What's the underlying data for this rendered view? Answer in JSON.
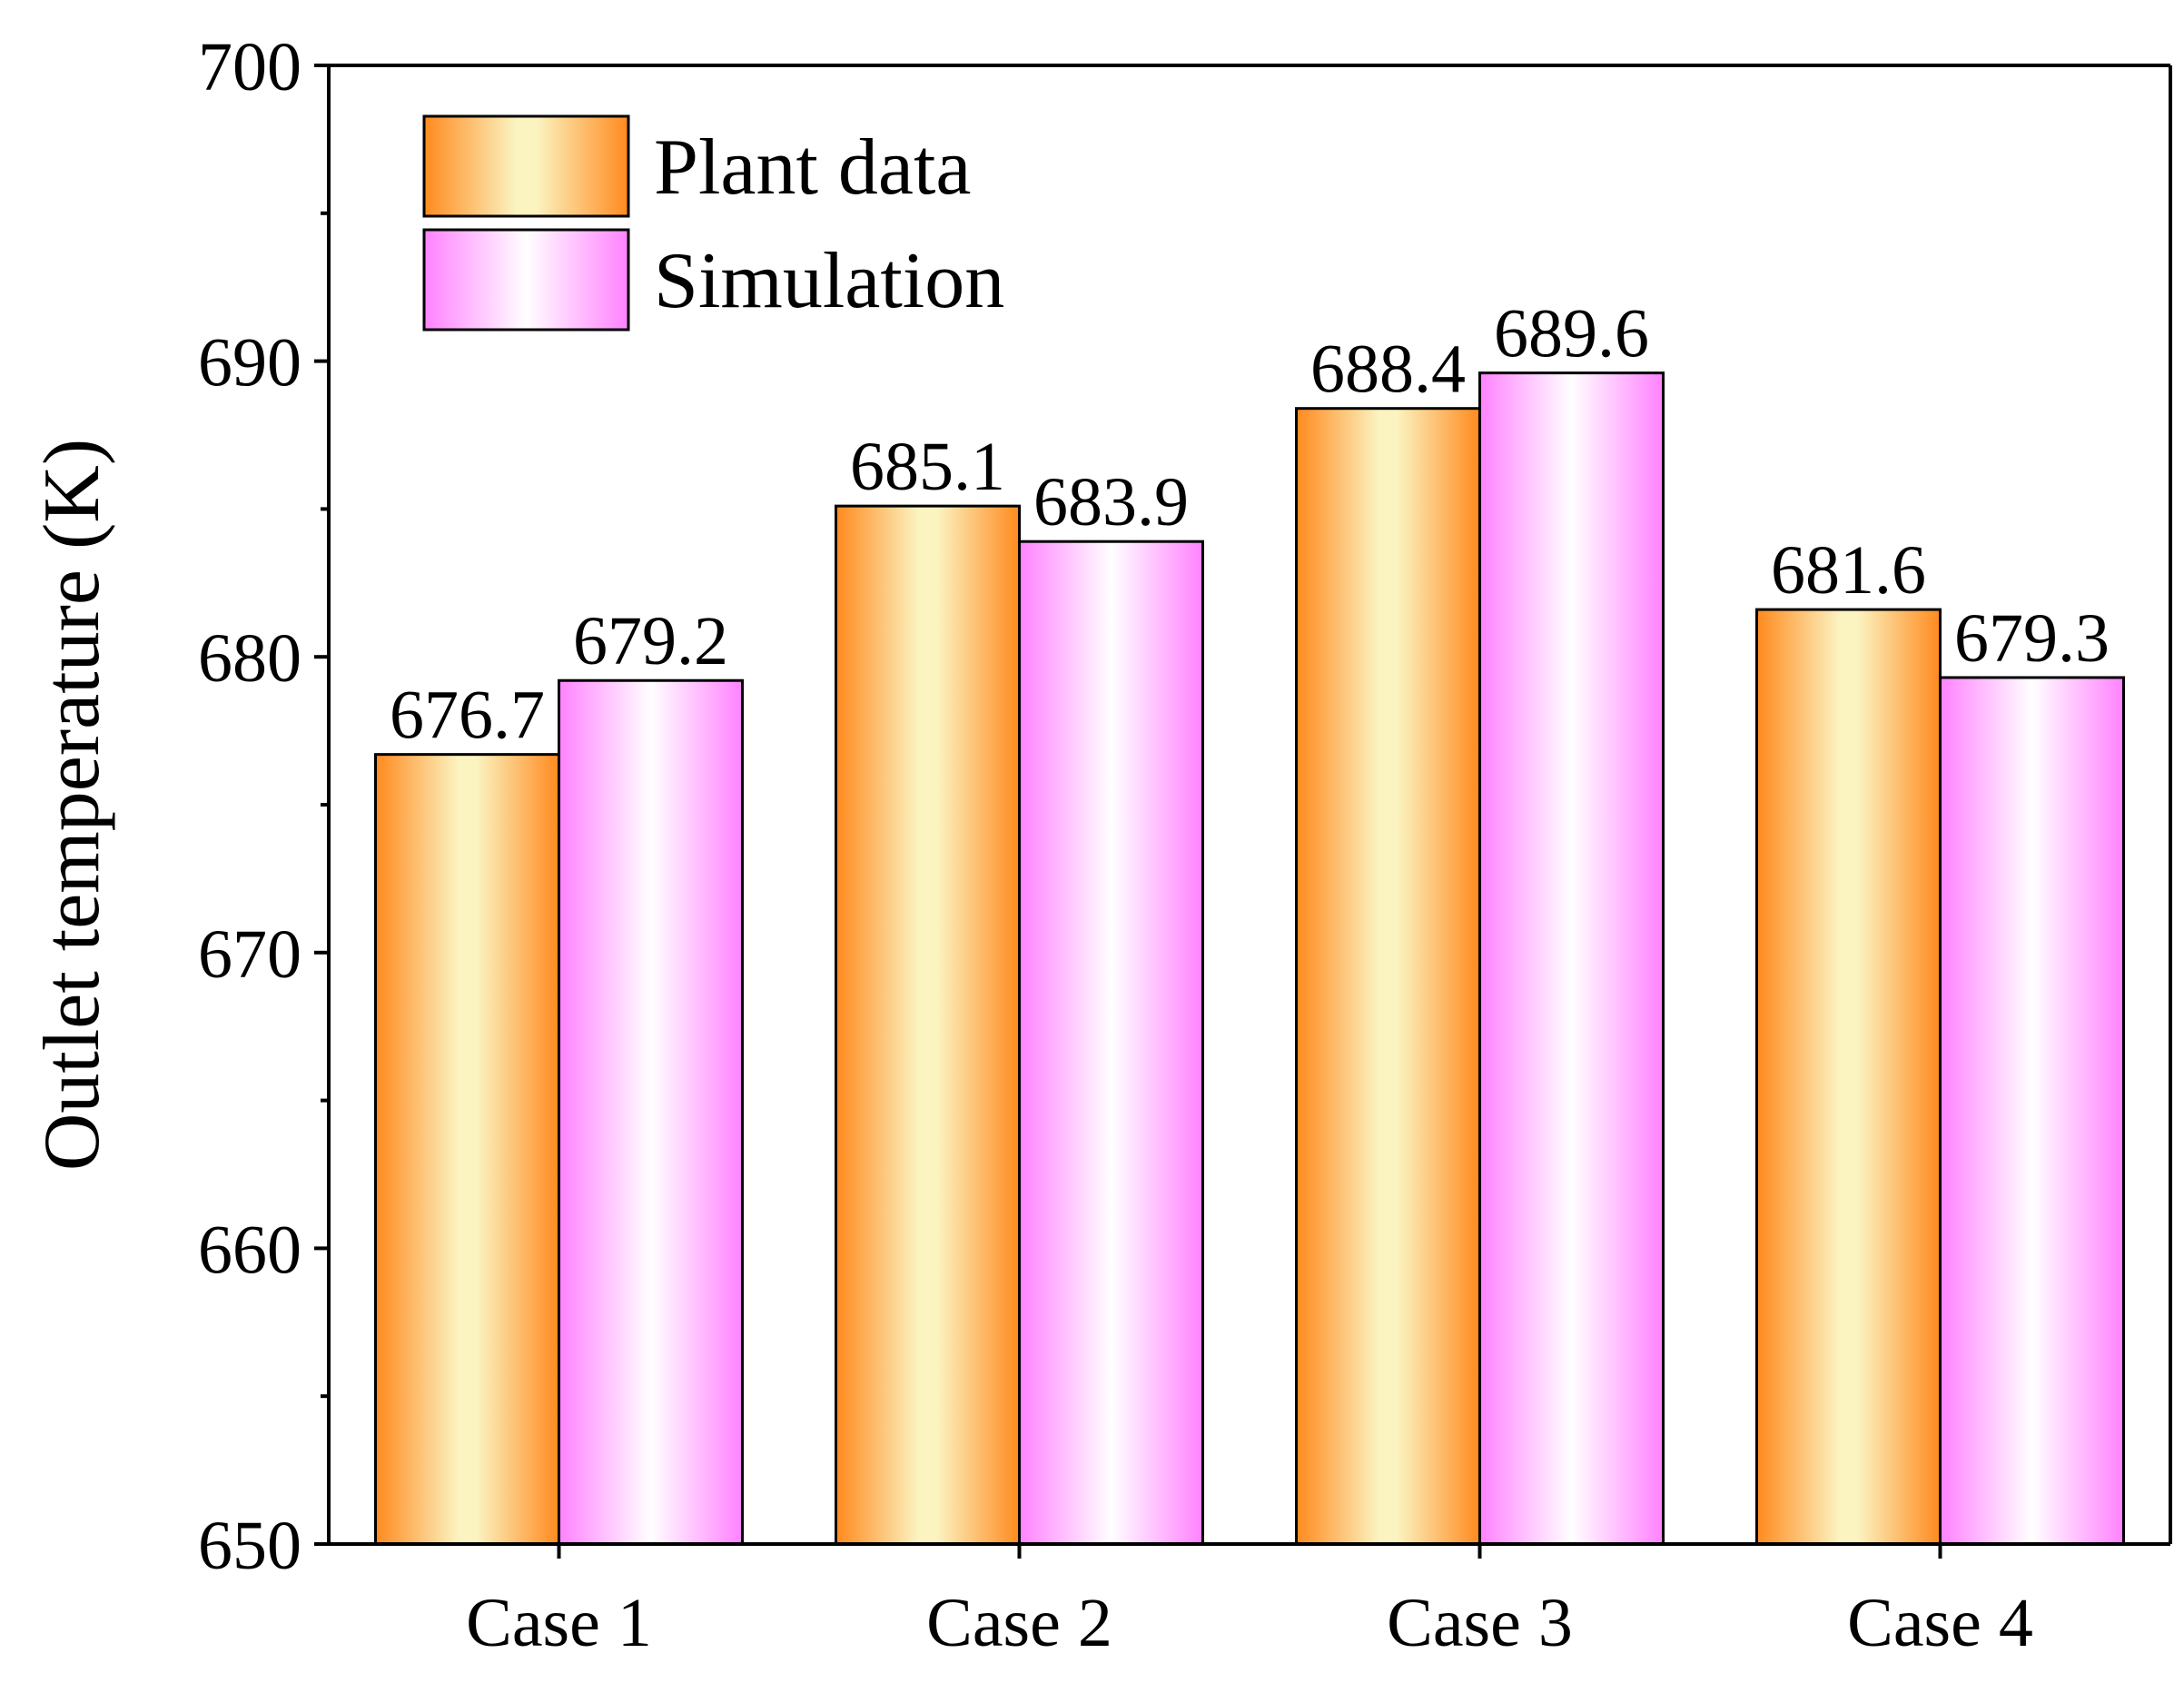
{
  "chart_data": {
    "type": "bar",
    "title": "",
    "xlabel": "",
    "ylabel": "Outlet temperature (K)",
    "ylim": [
      650,
      700
    ],
    "yticks": [
      650,
      660,
      670,
      680,
      690,
      700
    ],
    "categories": [
      "Case 1",
      "Case 2",
      "Case 3",
      "Case 4"
    ],
    "series": [
      {
        "name": "Plant data",
        "values": [
          676.7,
          685.1,
          688.4,
          681.6
        ],
        "labels": [
          "676.7",
          "685.1",
          "688.4",
          "681.6"
        ]
      },
      {
        "name": "Simulation",
        "values": [
          679.2,
          683.9,
          689.6,
          679.3
        ],
        "labels": [
          "679.2",
          "683.9",
          "689.6",
          "679.3"
        ]
      }
    ],
    "legend": {
      "position": "top-left"
    },
    "grid": false,
    "colors": {
      "plant_edge": "#ff8a1e",
      "plant_center": "#fbf3c0",
      "sim_edge": "#ff82ff",
      "sim_center": "#ffffff",
      "outline": "#000000"
    }
  }
}
